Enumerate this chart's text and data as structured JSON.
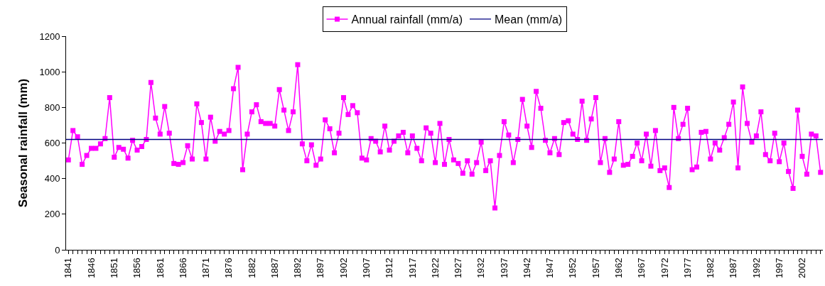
{
  "chart_data": {
    "type": "line",
    "ylabel": "Seasonal rainfall (mm)",
    "categories": [
      "1841",
      null,
      null,
      null,
      null,
      "1846",
      null,
      null,
      null,
      null,
      "1851",
      null,
      null,
      null,
      null,
      "1856",
      null,
      null,
      null,
      null,
      "1861",
      null,
      null,
      null,
      null,
      "1866",
      null,
      null,
      null,
      null,
      "1871",
      null,
      null,
      null,
      null,
      "1876",
      null,
      null,
      null,
      null,
      "1882",
      null,
      null,
      null,
      null,
      "1887",
      null,
      null,
      null,
      null,
      "1892",
      null,
      null,
      null,
      null,
      "1897",
      null,
      null,
      null,
      null,
      "1902",
      null,
      null,
      null,
      null,
      "1907",
      null,
      null,
      null,
      null,
      "1912",
      null,
      null,
      null,
      null,
      "1917",
      null,
      null,
      null,
      null,
      "1922",
      null,
      null,
      null,
      null,
      "1927",
      null,
      null,
      null,
      null,
      "1932",
      null,
      null,
      null,
      null,
      "1937",
      null,
      null,
      null,
      null,
      "1942",
      null,
      null,
      null,
      null,
      "1947",
      null,
      null,
      null,
      null,
      "1952",
      null,
      null,
      null,
      null,
      "1957",
      null,
      null,
      null,
      null,
      "1962",
      null,
      null,
      null,
      null,
      "1967",
      null,
      null,
      null,
      null,
      "1972",
      null,
      null,
      null,
      null,
      "1977",
      null,
      null,
      null,
      null,
      "1982",
      null,
      null,
      null,
      null,
      "1987",
      null,
      null,
      null,
      null,
      "1992",
      null,
      null,
      null,
      null,
      "1997",
      null,
      null,
      null,
      null,
      "2002",
      null,
      null,
      null,
      null
    ],
    "series": [
      {
        "name": "Annual rainfall (mm/a)",
        "color": "#ff00ff",
        "values": [
          505,
          670,
          635,
          480,
          530,
          570,
          570,
          595,
          625,
          855,
          520,
          575,
          565,
          515,
          615,
          560,
          580,
          620,
          940,
          740,
          650,
          805,
          655,
          485,
          480,
          490,
          585,
          510,
          820,
          715,
          510,
          745,
          610,
          665,
          650,
          670,
          905,
          1025,
          450,
          650,
          775,
          815,
          720,
          710,
          710,
          695,
          900,
          785,
          670,
          775,
          1040,
          595,
          500,
          590,
          475,
          510,
          730,
          680,
          545,
          655,
          855,
          760,
          810,
          770,
          515,
          505,
          625,
          610,
          550,
          695,
          560,
          610,
          640,
          660,
          545,
          640,
          570,
          500,
          685,
          655,
          490,
          710,
          480,
          620,
          505,
          485,
          430,
          500,
          425,
          490,
          605,
          445,
          500,
          235,
          530,
          720,
          645,
          490,
          620,
          845,
          695,
          575,
          890,
          795,
          615,
          545,
          625,
          535,
          715,
          725,
          650,
          620,
          835,
          615,
          735,
          855,
          490,
          625,
          435,
          510,
          720,
          475,
          480,
          525,
          600,
          500,
          650,
          470,
          670,
          445,
          460,
          350,
          800,
          625,
          705,
          795,
          450,
          465,
          660,
          665,
          510,
          600,
          560,
          630,
          705,
          830,
          460,
          915,
          710,
          605,
          640,
          775,
          535,
          500,
          655,
          495,
          600,
          440,
          345,
          785,
          525,
          425,
          650,
          640,
          435
        ]
      }
    ],
    "ref_lines": [
      {
        "axis": "y",
        "value": 620,
        "label": "Mean (mm/a)",
        "color": "#000080"
      }
    ],
    "ylim": [
      0,
      1200
    ],
    "yticks": [
      0,
      200,
      400,
      600,
      800,
      1000,
      1200
    ],
    "grid": false,
    "legend": "top",
    "marker": "square",
    "line_style": "solid"
  }
}
